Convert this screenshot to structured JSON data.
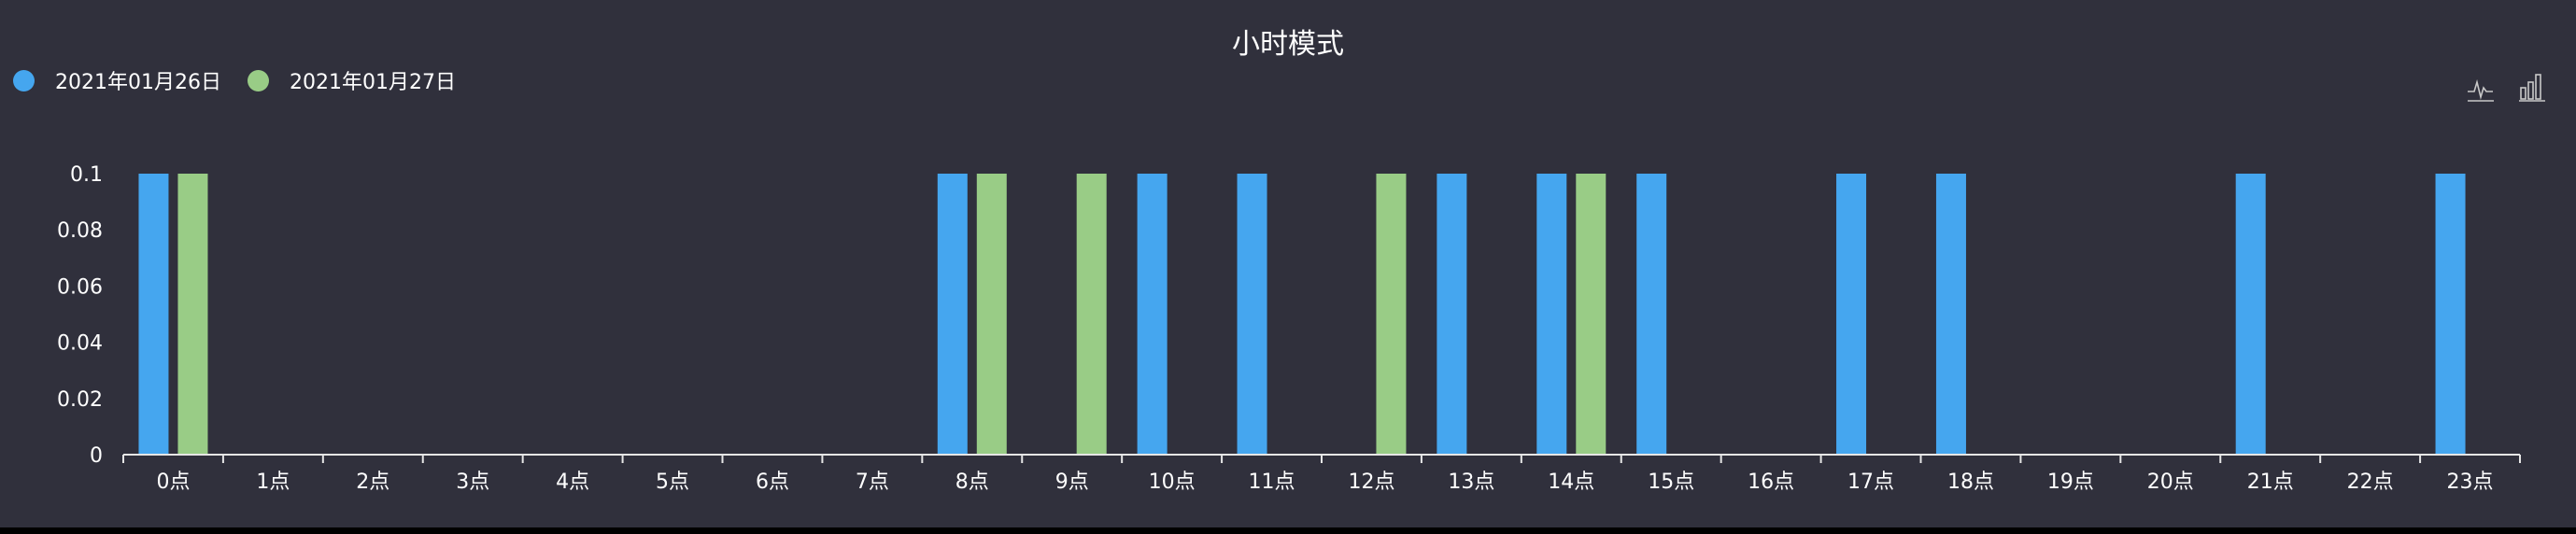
{
  "chart_data": {
    "type": "bar",
    "title": "小时模式",
    "xlabel": "",
    "ylabel": "",
    "ylim": [
      0,
      0.1
    ],
    "yticks": [
      "0",
      "0.02",
      "0.04",
      "0.06",
      "0.08",
      "0.1"
    ],
    "legend_position": "top-left",
    "grid": false,
    "categories": [
      "0点",
      "1点",
      "2点",
      "3点",
      "4点",
      "5点",
      "6点",
      "7点",
      "8点",
      "9点",
      "10点",
      "11点",
      "12点",
      "13点",
      "14点",
      "15点",
      "16点",
      "17点",
      "18点",
      "19点",
      "20点",
      "21点",
      "22点",
      "23点"
    ],
    "series": [
      {
        "name": "2021年01月26日",
        "color": "#45a6ef",
        "values": [
          0.1,
          0,
          0,
          0,
          0,
          0,
          0,
          0,
          0.1,
          0,
          0.1,
          0.1,
          0,
          0.1,
          0.1,
          0.1,
          0,
          0.1,
          0.1,
          0,
          0,
          0.1,
          0,
          0.1
        ]
      },
      {
        "name": "2021年01月27日",
        "color": "#99cc86",
        "values": [
          0.1,
          0,
          0,
          0,
          0,
          0,
          0,
          0,
          0.1,
          0.1,
          0,
          0,
          0.1,
          0,
          0.1,
          0,
          0,
          0,
          0,
          0,
          0,
          0,
          0,
          0
        ]
      }
    ]
  },
  "toolbox": {
    "line_icon": "line-chart-icon",
    "bar_icon": "bar-chart-icon"
  },
  "colors": {
    "background": "#30303c",
    "axis": "#e6e6e6",
    "text": "#ffffff"
  }
}
